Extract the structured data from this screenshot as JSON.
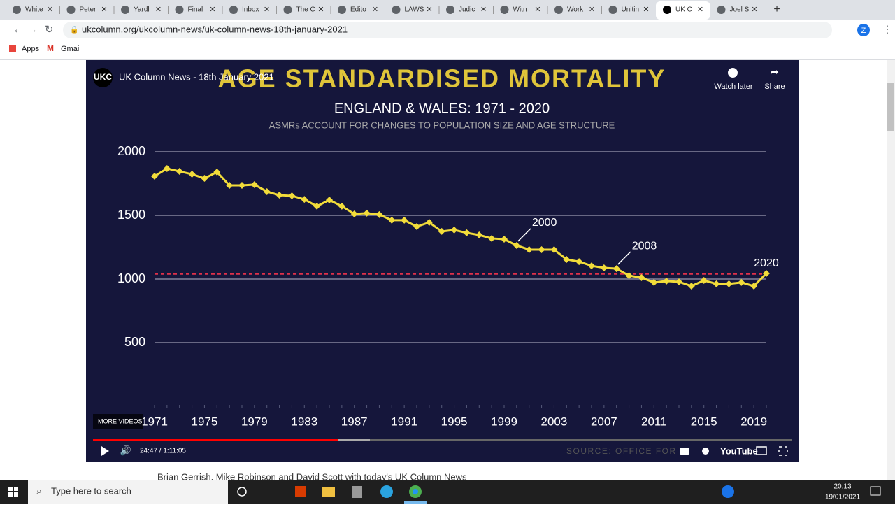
{
  "browser": {
    "tabs": [
      "White",
      "Peter",
      "Yardl",
      "Final",
      "Inbox",
      "The C",
      "Edito",
      "LAWS",
      "Judic",
      "Witn",
      "Work",
      "Unitin",
      "UK C",
      "Joel S"
    ],
    "url": "ukcolumn.org/ukcolumn-news/uk-column-news-18th-january-2021",
    "bookmarks": [
      "Apps",
      "Gmail"
    ],
    "profile": "Z"
  },
  "video": {
    "channel_logo": "UKC",
    "title": "UK Column News - 18th January 2021",
    "watch_later": "Watch later",
    "share": "Share",
    "more_videos": "MORE VIDEOS",
    "time": "24:47 / 1:11:05",
    "brand": "YouTube",
    "source": "SOURCE: OFFICE FOR"
  },
  "description": "Brian Gerrish, Mike Robinson and David Scott with today's UK Column News",
  "taskbar": {
    "search": "Type here to search",
    "time": "20:13",
    "date": "19/01/2021"
  },
  "chart_data": {
    "type": "line",
    "title": "AGE STANDARDISED MORTALITY",
    "subtitle": "ENGLAND & WALES: 1971 - 2020",
    "note": "ASMRs ACCOUNT FOR CHANGES TO POPULATION SIZE AND AGE STRUCTURE",
    "x": [
      1971,
      1972,
      1973,
      1974,
      1975,
      1976,
      1977,
      1978,
      1979,
      1980,
      1981,
      1982,
      1983,
      1984,
      1985,
      1986,
      1987,
      1988,
      1989,
      1990,
      1991,
      1992,
      1993,
      1994,
      1995,
      1996,
      1997,
      1998,
      1999,
      2000,
      2001,
      2002,
      2003,
      2004,
      2005,
      2006,
      2007,
      2008,
      2009,
      2010,
      2011,
      2012,
      2013,
      2014,
      2015,
      2016,
      2017,
      2018,
      2019,
      2020
    ],
    "series": [
      {
        "name": "ASMR",
        "color": "#f2dc3a",
        "values": [
          1808,
          1868,
          1846,
          1824,
          1791,
          1841,
          1736,
          1736,
          1742,
          1687,
          1659,
          1654,
          1626,
          1572,
          1621,
          1572,
          1511,
          1517,
          1506,
          1462,
          1462,
          1412,
          1445,
          1374,
          1385,
          1363,
          1346,
          1319,
          1313,
          1264,
          1231,
          1231,
          1231,
          1154,
          1137,
          1104,
          1088,
          1082,
          1027,
          1011,
          973,
          984,
          978,
          945,
          989,
          962,
          962,
          973,
          945,
          1044
        ]
      }
    ],
    "reference_line": {
      "value": 1040,
      "color": "#e0304a"
    },
    "annotations": [
      {
        "text": "2000",
        "x": 2000
      },
      {
        "text": "2008",
        "x": 2008
      },
      {
        "text": "2020",
        "x": 2020
      }
    ],
    "xlim": [
      1971,
      2020
    ],
    "xticks": [
      1971,
      1975,
      1979,
      1983,
      1987,
      1991,
      1995,
      1999,
      2003,
      2007,
      2011,
      2015,
      2019
    ],
    "ylim": [
      0,
      2000
    ],
    "yticks": [
      500,
      1000,
      1500,
      2000
    ],
    "grid": true
  }
}
